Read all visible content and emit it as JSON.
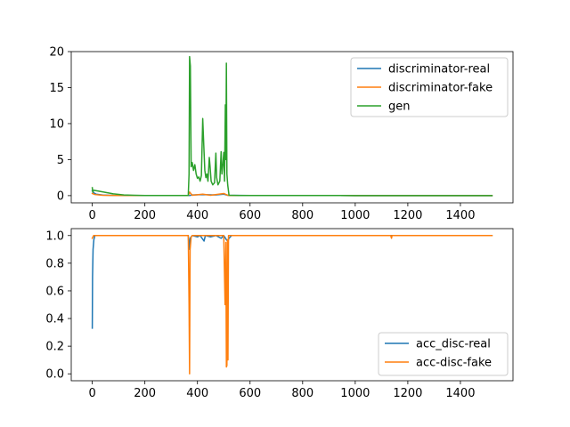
{
  "chart_data": [
    {
      "type": "line",
      "title": "",
      "xlabel": "",
      "ylabel": "",
      "xlim": [
        -80,
        1600
      ],
      "ylim": [
        -1,
        20
      ],
      "xticks": [
        0,
        200,
        400,
        600,
        800,
        1000,
        1200,
        1400
      ],
      "yticks": [
        0,
        5,
        10,
        15,
        20
      ],
      "legend": {
        "placement": "top-right"
      },
      "series": [
        {
          "name": "discriminator-real",
          "color": "#1f77b4",
          "points": [
            [
              0,
              0.7
            ],
            [
              5,
              0.4
            ],
            [
              15,
              0.2
            ],
            [
              40,
              0.08
            ],
            [
              80,
              0.03
            ],
            [
              150,
              0.02
            ],
            [
              370,
              0.02
            ],
            [
              380,
              0.1
            ],
            [
              420,
              0.15
            ],
            [
              470,
              0.1
            ],
            [
              500,
              0.2
            ],
            [
              515,
              0.05
            ],
            [
              600,
              0.02
            ],
            [
              1000,
              0.01
            ],
            [
              1520,
              0.01
            ]
          ]
        },
        {
          "name": "discriminator-fake",
          "color": "#ff7f0e",
          "points": [
            [
              0,
              0.3
            ],
            [
              10,
              0.15
            ],
            [
              40,
              0.05
            ],
            [
              100,
              0.02
            ],
            [
              365,
              0.02
            ],
            [
              370,
              0.5
            ],
            [
              380,
              0.05
            ],
            [
              420,
              0.2
            ],
            [
              450,
              0.05
            ],
            [
              500,
              0.3
            ],
            [
              512,
              0.1
            ],
            [
              520,
              0.02
            ],
            [
              1000,
              0.01
            ],
            [
              1520,
              0.01
            ]
          ]
        },
        {
          "name": "gen",
          "color": "#2ca02c",
          "points": [
            [
              0,
              1.1
            ],
            [
              2,
              0.5
            ],
            [
              5,
              0.75
            ],
            [
              20,
              0.65
            ],
            [
              50,
              0.45
            ],
            [
              80,
              0.25
            ],
            [
              120,
              0.1
            ],
            [
              160,
              0.05
            ],
            [
              200,
              0.02
            ],
            [
              365,
              0.02
            ],
            [
              368,
              3.0
            ],
            [
              370,
              19.3
            ],
            [
              373,
              18.0
            ],
            [
              376,
              4.0
            ],
            [
              380,
              4.6
            ],
            [
              385,
              3.5
            ],
            [
              390,
              4.3
            ],
            [
              395,
              3.0
            ],
            [
              400,
              2.4
            ],
            [
              405,
              2.6
            ],
            [
              410,
              2.0
            ],
            [
              415,
              2.8
            ],
            [
              420,
              10.7
            ],
            [
              424,
              7.0
            ],
            [
              428,
              3.5
            ],
            [
              432,
              2.5
            ],
            [
              436,
              3.0
            ],
            [
              440,
              2.0
            ],
            [
              445,
              5.3
            ],
            [
              448,
              4.0
            ],
            [
              452,
              2.0
            ],
            [
              458,
              1.5
            ],
            [
              465,
              1.8
            ],
            [
              470,
              5.9
            ],
            [
              473,
              2.5
            ],
            [
              478,
              1.5
            ],
            [
              485,
              2.0
            ],
            [
              490,
              6.1
            ],
            [
              493,
              3.0
            ],
            [
              497,
              4.5
            ],
            [
              500,
              6.0
            ],
            [
              503,
              2.0
            ],
            [
              506,
              12.6
            ],
            [
              508,
              5.0
            ],
            [
              510,
              18.4
            ],
            [
              512,
              3.0
            ],
            [
              515,
              1.5
            ],
            [
              520,
              0.05
            ],
            [
              560,
              0.02
            ],
            [
              1000,
              0.01
            ],
            [
              1520,
              0.01
            ]
          ]
        }
      ]
    },
    {
      "type": "line",
      "title": "",
      "xlabel": "",
      "ylabel": "",
      "xlim": [
        -80,
        1600
      ],
      "ylim": [
        -0.05,
        1.05
      ],
      "xticks": [
        0,
        200,
        400,
        600,
        800,
        1000,
        1200,
        1400
      ],
      "yticks": [
        0.0,
        0.2,
        0.4,
        0.6,
        0.8,
        1.0
      ],
      "legend": {
        "placement": "bottom-right"
      },
      "series": [
        {
          "name": "acc_disc-real",
          "color": "#1f77b4",
          "points": [
            [
              0,
              0.33
            ],
            [
              1,
              0.7
            ],
            [
              3,
              0.9
            ],
            [
              6,
              0.97
            ],
            [
              10,
              1.0
            ],
            [
              365,
              1.0
            ],
            [
              368,
              0.9
            ],
            [
              372,
              0.98
            ],
            [
              380,
              1.0
            ],
            [
              400,
              0.99
            ],
            [
              410,
              1.0
            ],
            [
              425,
              0.96
            ],
            [
              430,
              1.0
            ],
            [
              450,
              0.99
            ],
            [
              470,
              1.0
            ],
            [
              490,
              0.98
            ],
            [
              500,
              1.0
            ],
            [
              510,
              0.97
            ],
            [
              515,
              0.96
            ],
            [
              520,
              0.98
            ],
            [
              530,
              1.0
            ],
            [
              1520,
              1.0
            ]
          ]
        },
        {
          "name": "acc-disc-fake",
          "color": "#ff7f0e",
          "points": [
            [
              0,
              0.98
            ],
            [
              5,
              1.0
            ],
            [
              365,
              1.0
            ],
            [
              368,
              0.5
            ],
            [
              370,
              0.0
            ],
            [
              372,
              0.9
            ],
            [
              376,
              0.99
            ],
            [
              380,
              1.0
            ],
            [
              500,
              1.0
            ],
            [
              505,
              0.5
            ],
            [
              508,
              0.95
            ],
            [
              510,
              0.05
            ],
            [
              512,
              0.06
            ],
            [
              514,
              0.97
            ],
            [
              516,
              0.1
            ],
            [
              518,
              1.0
            ],
            [
              1135,
              1.0
            ],
            [
              1138,
              0.98
            ],
            [
              1140,
              1.0
            ],
            [
              1520,
              1.0
            ]
          ]
        }
      ]
    }
  ]
}
